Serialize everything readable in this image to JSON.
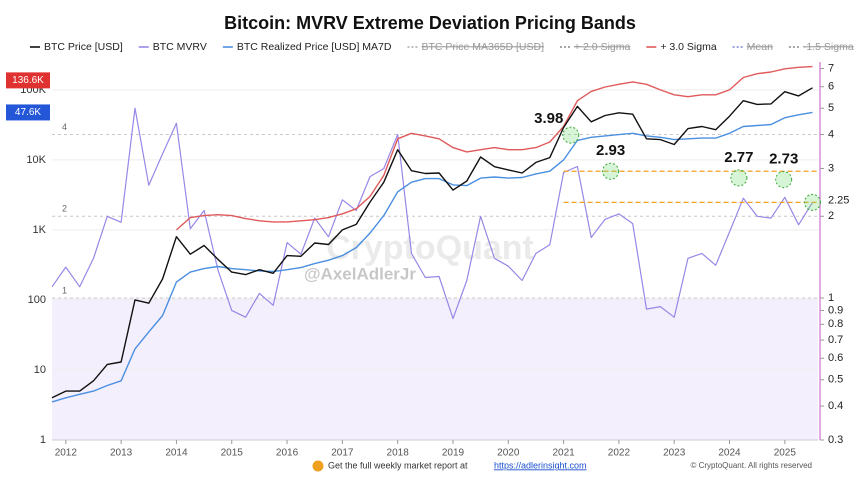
{
  "chart_data": {
    "type": "line",
    "title": "Bitcoin: MVRV Extreme Deviation Pricing Bands",
    "x": [
      2011.75,
      2012.0,
      2012.25,
      2012.5,
      2012.75,
      2013.0,
      2013.25,
      2013.5,
      2013.75,
      2014.0,
      2014.25,
      2014.5,
      2014.75,
      2015.0,
      2015.25,
      2015.5,
      2015.75,
      2016.0,
      2016.25,
      2016.5,
      2016.75,
      2017.0,
      2017.25,
      2017.5,
      2017.75,
      2018.0,
      2018.25,
      2018.5,
      2018.75,
      2019.0,
      2019.25,
      2019.5,
      2019.75,
      2020.0,
      2020.25,
      2020.5,
      2020.75,
      2021.0,
      2021.25,
      2021.5,
      2021.75,
      2022.0,
      2022.25,
      2022.5,
      2022.75,
      2023.0,
      2023.25,
      2023.5,
      2023.75,
      2024.0,
      2024.25,
      2024.5,
      2024.75,
      2025.0,
      2025.25,
      2025.5
    ],
    "series": [
      {
        "name": "BTC Price [USD]",
        "color": "#111111",
        "values": [
          4,
          5,
          5,
          7,
          12,
          13,
          100,
          90,
          200,
          800,
          450,
          600,
          380,
          250,
          230,
          270,
          240,
          430,
          420,
          650,
          620,
          1000,
          1200,
          2500,
          4800,
          14000,
          7000,
          6400,
          6500,
          3700,
          5000,
          11000,
          8000,
          7200,
          6500,
          9200,
          10800,
          29000,
          58000,
          35000,
          43000,
          47000,
          45000,
          20000,
          19500,
          16600,
          28000,
          30000,
          27000,
          42000,
          70000,
          62000,
          63000,
          94000,
          82000,
          107000
        ]
      },
      {
        "name": "BTC MVRV",
        "color": "#9a86e6",
        "axis": "y2",
        "values": [
          1.1,
          1.3,
          1.1,
          1.4,
          2.0,
          1.9,
          5.0,
          2.6,
          3.4,
          4.4,
          1.8,
          2.1,
          1.27,
          0.9,
          0.85,
          1.04,
          0.94,
          1.6,
          1.45,
          1.97,
          1.68,
          2.3,
          2.1,
          2.8,
          3.0,
          4.0,
          1.46,
          1.19,
          1.2,
          0.84,
          1.16,
          2.0,
          1.4,
          1.31,
          1.16,
          1.46,
          1.57,
          2.9,
          3.05,
          1.67,
          1.95,
          2.04,
          1.88,
          0.91,
          0.93,
          0.85,
          1.4,
          1.46,
          1.32,
          1.75,
          2.33,
          2.0,
          1.97,
          2.35,
          1.86,
          2.25
        ]
      },
      {
        "name": "BTC Realized Price [USD] MA7D",
        "color": "#4a8fe0",
        "values": [
          3.5,
          4,
          4.5,
          5,
          6,
          7,
          20,
          35,
          60,
          180,
          250,
          280,
          300,
          280,
          270,
          260,
          255,
          270,
          290,
          330,
          370,
          430,
          560,
          900,
          1600,
          3500,
          4800,
          5400,
          5400,
          4400,
          4300,
          5500,
          5700,
          5500,
          5600,
          6300,
          6900,
          10000,
          19000,
          21000,
          22000,
          23000,
          24000,
          22000,
          21000,
          19500,
          20000,
          20500,
          20500,
          24000,
          30000,
          31000,
          32000,
          40000,
          44000,
          47600
        ]
      },
      {
        "name": "BTC Price MA365D [USD]",
        "color": "#aaaaaa",
        "visible": false
      },
      {
        "name": "+ 2.0 Sigma",
        "color": "#888888",
        "visible": false
      },
      {
        "name": "+ 3.0 Sigma",
        "color": "#e05a5a",
        "values": [
          null,
          null,
          null,
          null,
          null,
          null,
          null,
          null,
          null,
          1000,
          1500,
          1600,
          1650,
          1600,
          1450,
          1350,
          1300,
          1300,
          1350,
          1400,
          1500,
          1700,
          2000,
          3000,
          6000,
          20000,
          24000,
          22000,
          20000,
          15000,
          13000,
          14000,
          15000,
          14000,
          14000,
          15000,
          18000,
          30000,
          70000,
          95000,
          110000,
          120000,
          130000,
          120000,
          100000,
          85000,
          80000,
          85000,
          85000,
          100000,
          150000,
          170000,
          180000,
          200000,
          210000,
          215000
        ]
      },
      {
        "name": "Mean",
        "color": "#7b86d6",
        "visible": false
      },
      {
        "name": "-1.5 Sigma",
        "color": "#888888",
        "visible": false
      }
    ],
    "xlim": [
      2011.75,
      2025.6
    ],
    "xticks": [
      2012,
      2013,
      2014,
      2015,
      2016,
      2017,
      2018,
      2019,
      2020,
      2021,
      2022,
      2023,
      2024,
      2025
    ],
    "log_scale": true,
    "ylim": [
      1,
      250000
    ],
    "yticks": [
      1,
      10,
      100,
      {
        "value": 1000,
        "label": "1K"
      },
      {
        "value": 10000,
        "label": "10K"
      },
      {
        "value": 100000,
        "label": "100K"
      }
    ],
    "y2lim": [
      0.3,
      7.4
    ],
    "y2ticks": [
      0.3,
      0.4,
      0.5,
      0.6,
      0.7,
      0.8,
      0.9,
      1,
      2,
      3,
      4,
      5,
      6,
      7
    ],
    "reference_lines": [
      4,
      2,
      1
    ],
    "shade_below": 1,
    "thresholds": [
      2.93,
      2.25
    ],
    "annotations": [
      {
        "x": 2021.13,
        "value": 3.98
      },
      {
        "x": 2021.85,
        "value": 2.93
      },
      {
        "x": 2024.17,
        "value": 2.77
      },
      {
        "x": 2024.98,
        "value": 2.73
      },
      {
        "x": 2025.5,
        "value": 2.25
      }
    ],
    "last_values": [
      {
        "value": 136600,
        "label": "136.6K",
        "color": "#e03131"
      },
      {
        "value": 47600,
        "label": "47.6K",
        "color": "#2456d8"
      }
    ],
    "watermark": [
      "CryptoQuant",
      "@AxelAdlerJr"
    ],
    "footer": {
      "text": "Get the full weekly market report at",
      "link": "https://adlerinsight.com",
      "copyright": "© CryptoQuant. All rights reserved"
    }
  }
}
